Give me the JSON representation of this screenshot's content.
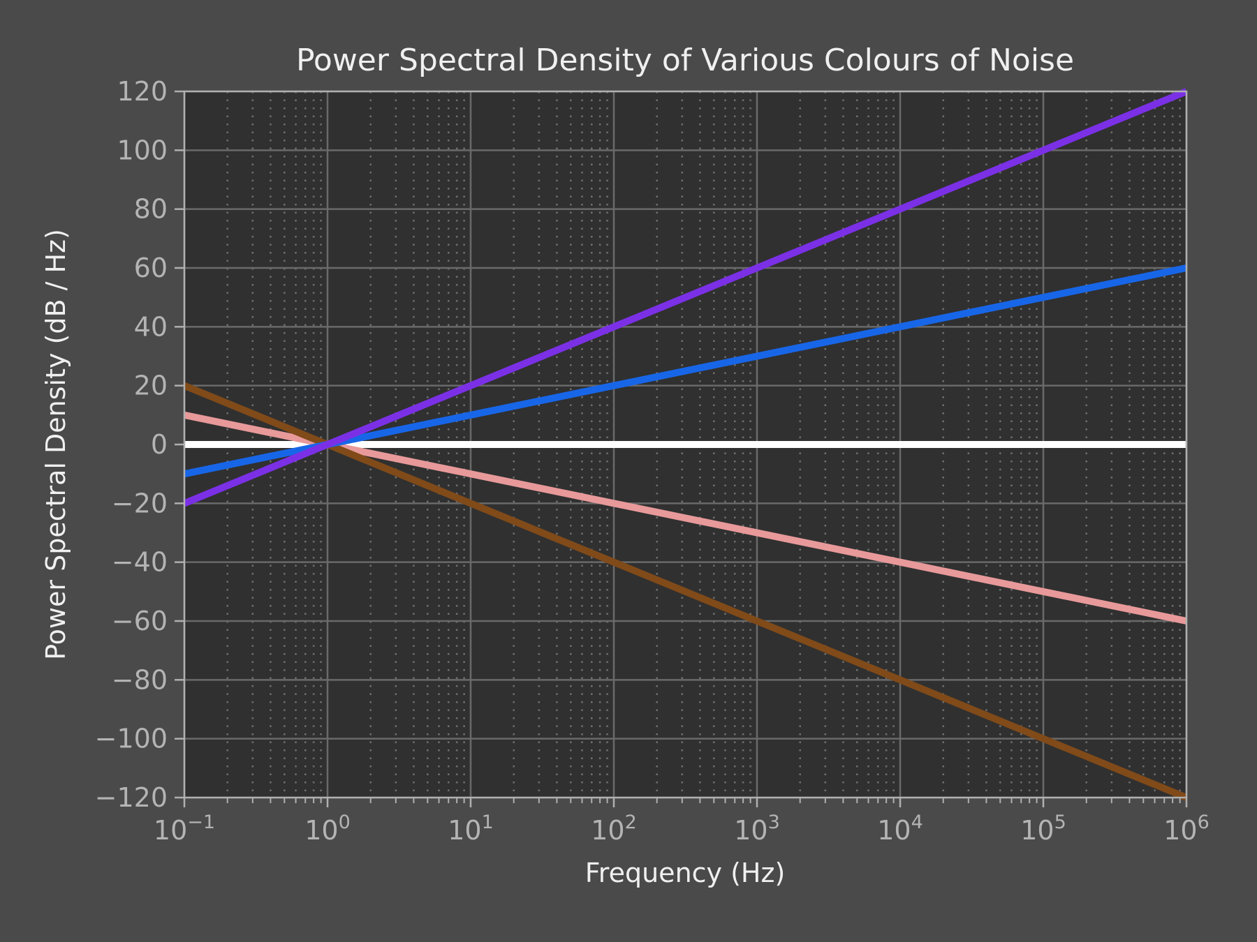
{
  "chart_data": {
    "type": "line",
    "title": "Power Spectral Density of Various Colours of Noise",
    "xlabel": "Frequency (Hz)",
    "ylabel": "Power Spectral Density (dB / Hz)",
    "xscale": "log",
    "xlim": [
      0.1,
      1000000
    ],
    "ylim": [
      -120,
      120
    ],
    "grid": {
      "major": true,
      "minor_x": true,
      "minor_style": "dotted"
    },
    "x_tick_exponents": [
      -1,
      0,
      1,
      2,
      3,
      4,
      5,
      6
    ],
    "y_ticks": [
      -120,
      -100,
      -80,
      -60,
      -40,
      -20,
      0,
      20,
      40,
      60,
      80,
      100,
      120
    ],
    "y_tick_labels": [
      "−120",
      "−100",
      "−80",
      "−60",
      "−40",
      "−20",
      "0",
      "20",
      "40",
      "60",
      "80",
      "100",
      "120"
    ],
    "legend": "none",
    "x": [
      0.1,
      1000000
    ],
    "series": [
      {
        "values": [
          0,
          0
        ],
        "color": "#ffffff"
      },
      {
        "values": [
          10,
          -60
        ],
        "color": "#e8999a"
      },
      {
        "values": [
          20,
          -120
        ],
        "color": "#804a19"
      },
      {
        "values": [
          -10,
          60
        ],
        "color": "#1866e8"
      },
      {
        "values": [
          -20,
          120
        ],
        "color": "#7b30e6"
      }
    ],
    "colors": {
      "background": "#4a4a4a",
      "plot_background": "#303030",
      "grid": "#6a6a6a",
      "axis": "#b0b0b0",
      "tick_text": "#b4b4b4",
      "title_text": "#f0f0f0"
    }
  }
}
